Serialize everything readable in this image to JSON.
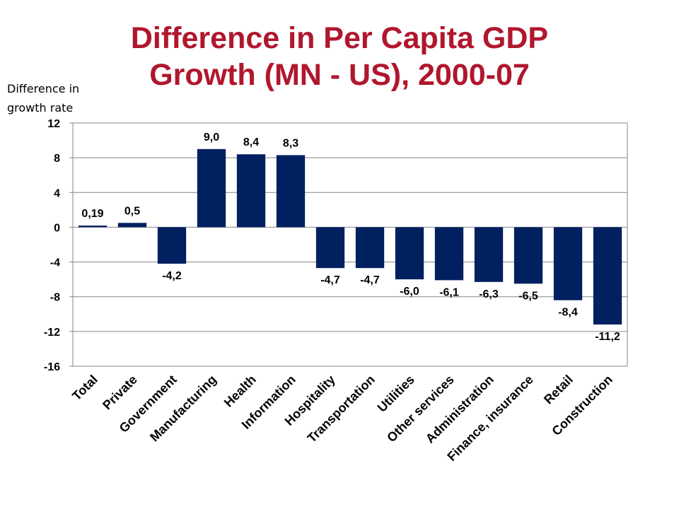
{
  "chart_data": {
    "type": "bar",
    "title_lines": [
      "Difference in Per Capita GDP",
      "Growth (MN - US), 2000-07"
    ],
    "ylabel_lines": [
      "Difference in",
      "growth rate"
    ],
    "categories": [
      "Total",
      "Private",
      "Government",
      "Manufacturing",
      "Health",
      "Information",
      "Hospitality",
      "Transportation",
      "Utilities",
      "Other services",
      "Administration",
      "Finance, insurance",
      "Retail",
      "Construction"
    ],
    "values": [
      0.19,
      0.5,
      -4.2,
      9.0,
      8.4,
      8.3,
      -4.7,
      -4.7,
      -6.0,
      -6.1,
      -6.3,
      -6.5,
      -8.4,
      -11.2
    ],
    "data_labels": [
      "0,19",
      "0,5",
      "-4,2",
      "9,0",
      "8,4",
      "8,3",
      "-4,7",
      "-4,7",
      "-6,0",
      "-6,1",
      "-6,3",
      "-6,5",
      "-8,4",
      "-11,2"
    ],
    "ylim": [
      -16,
      12
    ],
    "yticks": [
      12,
      8,
      4,
      0,
      -4,
      -8,
      -12,
      -16
    ],
    "ytick_labels": [
      "12",
      "8",
      "4",
      "0",
      "-4",
      "-8",
      "-12",
      "-16"
    ],
    "grid": true,
    "legend": "none",
    "bar_color": "#002060",
    "title_color": "#b0172d"
  }
}
